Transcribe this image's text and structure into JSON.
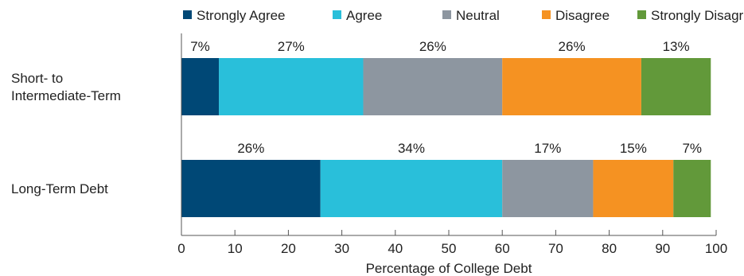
{
  "chart_data": {
    "type": "bar",
    "orientation": "horizontal",
    "stacked": true,
    "title": "",
    "xlabel": "Percentage of College Debt",
    "ylabel": "",
    "xlim": [
      0,
      100
    ],
    "x_ticks": [
      "0",
      "10",
      "20",
      "30",
      "40",
      "50",
      "60",
      "70",
      "80",
      "90",
      "100"
    ],
    "grid": false,
    "legend_position": "top",
    "categories": [
      "Short- to Intermediate-Term",
      "Long-Term Debt"
    ],
    "category_lines": [
      [
        "Short- to",
        "Intermediate-Term"
      ],
      [
        "Long-Term Debt"
      ]
    ],
    "series": [
      {
        "name": "Strongly Agree",
        "color": "#004876",
        "values": [
          7,
          26
        ],
        "labels": [
          "7%",
          "26%"
        ]
      },
      {
        "name": "Agree",
        "color": "#29bfda",
        "values": [
          27,
          34
        ],
        "labels": [
          "27%",
          "34%"
        ]
      },
      {
        "name": "Neutral",
        "color": "#8d96a0",
        "values": [
          26,
          17
        ],
        "labels": [
          "26%",
          "17%"
        ]
      },
      {
        "name": "Disagree",
        "color": "#f59222",
        "values": [
          26,
          15
        ],
        "labels": [
          "26%",
          "15%"
        ]
      },
      {
        "name": "Strongly Disagree",
        "color": "#62993a",
        "values": [
          13,
          7
        ],
        "labels": [
          "13%",
          "7%"
        ]
      }
    ]
  }
}
